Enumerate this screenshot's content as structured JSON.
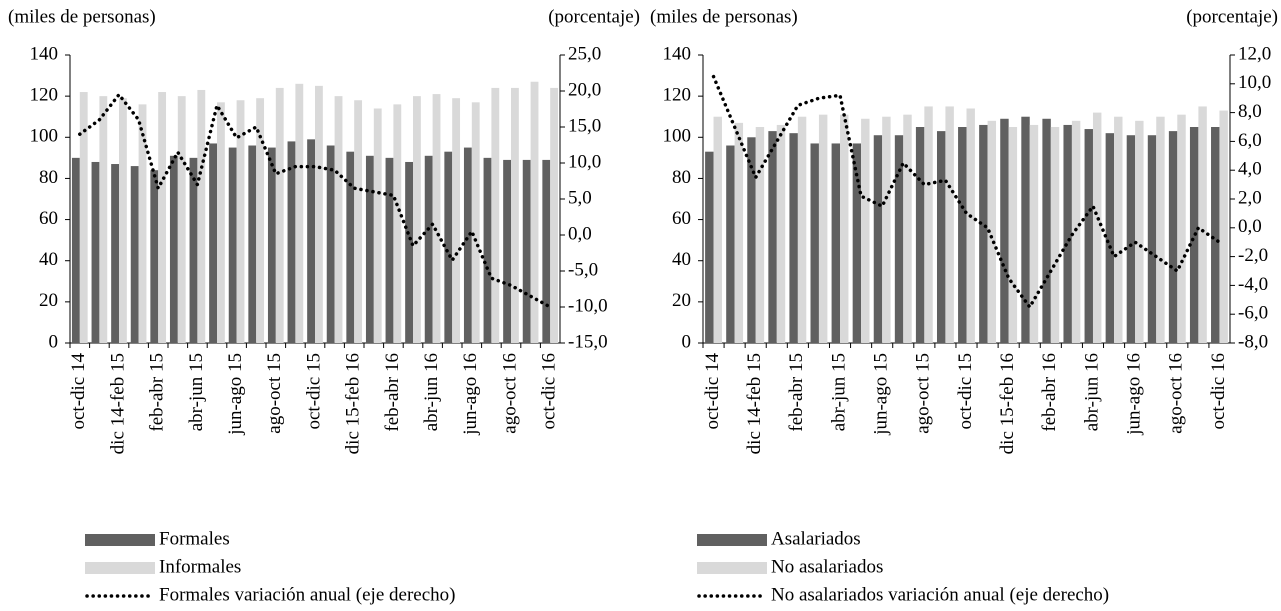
{
  "chart_data": [
    {
      "type": "bar",
      "y_label": "(miles de personas)",
      "y2_label": "(porcentaje)",
      "categories": [
        "oct-dic 14",
        null,
        "dic 14-feb 15",
        null,
        "feb-abr 15",
        null,
        "abr-jun 15",
        null,
        "jun-ago 15",
        null,
        "ago-oct 15",
        null,
        "oct-dic 15",
        null,
        "dic 15-feb 16",
        null,
        "feb-abr 16",
        null,
        "abr-jun 16",
        null,
        "jun-ago 16",
        null,
        "ago-oct 16",
        null,
        "oct-dic 16"
      ],
      "series": [
        {
          "name": "Formales",
          "color": "#606060",
          "values": [
            90,
            88,
            87,
            86,
            84,
            91,
            90,
            97,
            95,
            96,
            95,
            98,
            99,
            96,
            93,
            91,
            90,
            88,
            91,
            93,
            95,
            90,
            89,
            89,
            89
          ]
        },
        {
          "name": "Informales",
          "color": "#d9d9d9",
          "values": [
            122,
            120,
            119,
            116,
            122,
            120,
            123,
            117,
            118,
            119,
            124,
            126,
            125,
            120,
            118,
            114,
            116,
            120,
            121,
            119,
            117,
            124,
            124,
            127,
            124
          ]
        },
        {
          "name": "Formales variación anual (eje derecho)",
          "color": "#000000",
          "type": "line",
          "axis": "y2",
          "values": [
            14,
            16,
            19.5,
            16,
            6.5,
            11.5,
            7,
            18,
            13.5,
            15,
            8.5,
            9.5,
            9.5,
            9,
            6.5,
            6,
            5.5,
            -1.5,
            1.5,
            -3.5,
            0.5,
            -6,
            -7,
            -8.5,
            -10
          ]
        }
      ],
      "ylim": [
        0,
        140
      ],
      "yticks": [
        0,
        20,
        40,
        60,
        80,
        100,
        120,
        140
      ],
      "y2lim": [
        -15,
        25
      ],
      "y2ticks": [
        {
          "value": -15,
          "label": "-15,0"
        },
        {
          "value": -10,
          "label": "-10,0"
        },
        {
          "value": -5,
          "label": "-5,0"
        },
        {
          "value": 0,
          "label": "0,0"
        },
        {
          "value": 5,
          "label": "5,0"
        },
        {
          "value": 10,
          "label": "10,0"
        },
        {
          "value": 15,
          "label": "15,0"
        },
        {
          "value": 20,
          "label": "20,0"
        },
        {
          "value": 25,
          "label": "25,0"
        }
      ]
    },
    {
      "type": "bar",
      "y_label": "(miles de personas)",
      "y2_label": "(porcentaje)",
      "categories": [
        "oct-dic 14",
        null,
        "dic 14-feb 15",
        null,
        "feb-abr 15",
        null,
        "abr-jun 15",
        null,
        "jun-ago 15",
        null,
        "ago-oct 15",
        null,
        "oct-dic 15",
        null,
        "dic 15-feb 16",
        null,
        "feb-abr 16",
        null,
        "abr-jun 16",
        null,
        "jun-ago 16",
        null,
        "ago-oct 16",
        null,
        "oct-dic 16"
      ],
      "series": [
        {
          "name": "Asalariados",
          "color": "#606060",
          "values": [
            93,
            96,
            100,
            103,
            102,
            97,
            97,
            97,
            101,
            101,
            105,
            103,
            105,
            106,
            109,
            110,
            109,
            106,
            104,
            102,
            101,
            101,
            103,
            105,
            105
          ]
        },
        {
          "name": "No asalariados",
          "color": "#d9d9d9",
          "values": [
            110,
            107,
            105,
            106,
            110,
            111,
            111,
            109,
            110,
            111,
            115,
            115,
            114,
            108,
            105,
            106,
            105,
            108,
            112,
            110,
            108,
            110,
            111,
            115,
            113
          ]
        },
        {
          "name": "No asalariados variación anual (eje derecho)",
          "color": "#000000",
          "type": "line",
          "axis": "y2",
          "values": [
            10.5,
            7,
            3.5,
            6,
            8.5,
            9,
            9.2,
            2.2,
            1.5,
            4.5,
            3,
            3.3,
            1,
            0,
            -3.5,
            -5.5,
            -3,
            -0.5,
            1.5,
            -2,
            -1,
            -2,
            -3,
            0,
            -1
          ]
        }
      ],
      "ylim": [
        0,
        140
      ],
      "yticks": [
        0,
        20,
        40,
        60,
        80,
        100,
        120,
        140
      ],
      "y2lim": [
        -8,
        12
      ],
      "y2ticks": [
        {
          "value": -8,
          "label": "-8,0"
        },
        {
          "value": -6,
          "label": "-6,0"
        },
        {
          "value": -4,
          "label": "-4,0"
        },
        {
          "value": -2,
          "label": "-2,0"
        },
        {
          "value": 0,
          "label": "0,0"
        },
        {
          "value": 2,
          "label": "2,0"
        },
        {
          "value": 4,
          "label": "4,0"
        },
        {
          "value": 6,
          "label": "6,0"
        },
        {
          "value": 8,
          "label": "8,0"
        },
        {
          "value": 10,
          "label": "10,0"
        },
        {
          "value": 12,
          "label": "12,0"
        }
      ]
    }
  ]
}
